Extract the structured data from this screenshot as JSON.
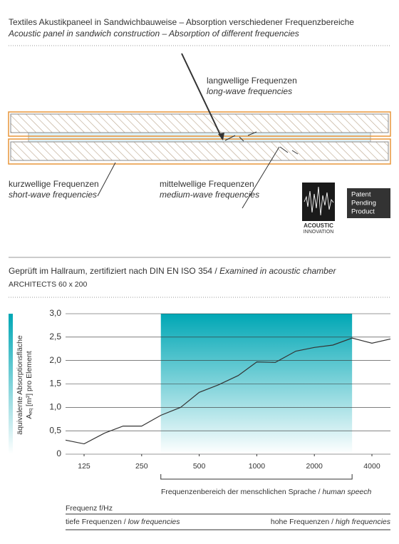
{
  "header": {
    "title_de": "Textiles Akustikpaneel in Sandwichbauweise – Absorption verschiedener Frequenzbereiche",
    "title_en": "Acoustic panel in sandwich construction – Absorption of different frequencies"
  },
  "diagram": {
    "long_de": "langwellige Frequenzen",
    "long_en": "long-wave frequencies",
    "short_de": "kurzwellige Frequenzen",
    "short_en": "short-wave frequencies",
    "medium_de": "mittelwellige Frequenzen",
    "medium_en": "medium-wave frequencies"
  },
  "logo": {
    "line1": "ACOUSTIC",
    "line2": "INNOVATION"
  },
  "badge": {
    "lines": [
      "Patent",
      "Pending",
      "Product"
    ]
  },
  "test": {
    "heading_de": "Geprüft im Hallraum, zertifiziert nach DIN EN ISO 354 /",
    "heading_en": "Examined in acoustic chamber",
    "model": "ARCHITECTS 60 x 200"
  },
  "chart_data": {
    "type": "line",
    "x": [
      100,
      125,
      160,
      200,
      250,
      315,
      400,
      500,
      630,
      800,
      1000,
      1250,
      1600,
      2000,
      2500,
      3150,
      4000,
      5000
    ],
    "values": [
      0.3,
      0.22,
      0.45,
      0.6,
      0.6,
      0.83,
      1.0,
      1.32,
      1.48,
      1.68,
      1.97,
      1.96,
      2.2,
      2.28,
      2.33,
      2.48,
      2.37,
      2.46
    ],
    "color": "#333333",
    "x_log": true,
    "grid": true,
    "xlim": [
      100,
      5000
    ],
    "xticks": [
      125,
      250,
      500,
      1000,
      2000,
      4000
    ],
    "ylim": [
      0,
      3
    ],
    "yticks": [
      0,
      {
        "value": 0.5,
        "label": "0,5"
      },
      {
        "value": 1,
        "label": "1,0"
      },
      {
        "value": 1.5,
        "label": "1,5"
      },
      {
        "value": 2,
        "label": "2,0"
      },
      {
        "value": 2.5,
        "label": "2,5"
      },
      {
        "value": 3,
        "label": "3,0"
      }
    ],
    "ylabel_line1": "äquivalente Absorptionsfläche",
    "ylabel_A": "A",
    "ylabel_sub": "eq",
    "ylabel_rest": " [m²] pro Element",
    "band": {
      "from": 315,
      "to": 3150,
      "color": "#00a7b5",
      "label_de": "Frequenzenbereich der menschlichen Sprache /",
      "label_en": "human speech"
    },
    "xlabel": "Frequenz f/Hz",
    "low_de": "tiefe Frequenzen /",
    "low_en": "low frequencies",
    "high_de": "hohe Frequenzen /",
    "high_en": "high frequencies"
  }
}
